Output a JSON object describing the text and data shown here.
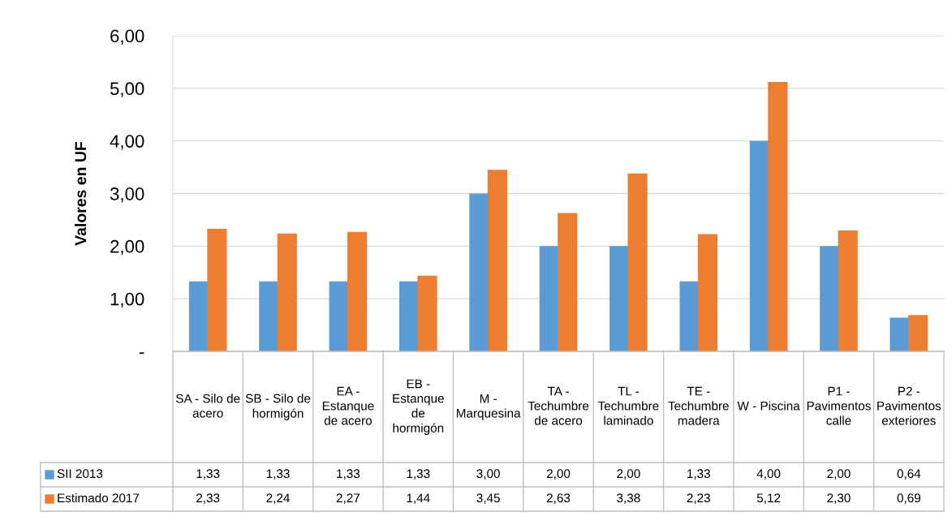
{
  "chart_data": {
    "type": "bar",
    "ylabel": "Valores en UF",
    "categories": [
      "SA - Silo de acero",
      "SB - Silo de hormigón",
      "EA - Estanque de acero",
      "EB - Estanque de hormigón",
      "M - Marquesina",
      "TA - Techumbre de acero",
      "TL - Techumbre laminado",
      "TE - Techumbre madera",
      "W - Piscina",
      "P1 - Pavimentos calle",
      "P2 - Pavimentos exteriores"
    ],
    "series": [
      {
        "name": "SII 2013",
        "color": "#5b9bd5",
        "values": [
          1.33,
          1.33,
          1.33,
          1.33,
          3.0,
          2.0,
          2.0,
          1.33,
          4.0,
          2.0,
          0.64
        ],
        "value_labels": [
          "1,33",
          "1,33",
          "1,33",
          "1,33",
          "3,00",
          "2,00",
          "2,00",
          "1,33",
          "4,00",
          "2,00",
          "0,64"
        ]
      },
      {
        "name": "Estimado 2017",
        "color": "#ed7d31",
        "values": [
          2.33,
          2.24,
          2.27,
          1.44,
          3.45,
          2.63,
          3.38,
          2.23,
          5.12,
          2.3,
          0.69
        ],
        "value_labels": [
          "2,33",
          "2,24",
          "2,27",
          "1,44",
          "3,45",
          "2,63",
          "3,38",
          "2,23",
          "5,12",
          "2,30",
          "0,69"
        ]
      }
    ],
    "ylim": [
      0,
      6
    ],
    "yticks": [
      {
        "value": 0,
        "label": "-"
      },
      {
        "value": 1,
        "label": "1,00"
      },
      {
        "value": 2,
        "label": "2,00"
      },
      {
        "value": 3,
        "label": "3,00"
      },
      {
        "value": 4,
        "label": "4,00"
      },
      {
        "value": 5,
        "label": "5,00"
      },
      {
        "value": 6,
        "label": "6,00"
      }
    ],
    "grid": "y",
    "legend": "bottom"
  }
}
